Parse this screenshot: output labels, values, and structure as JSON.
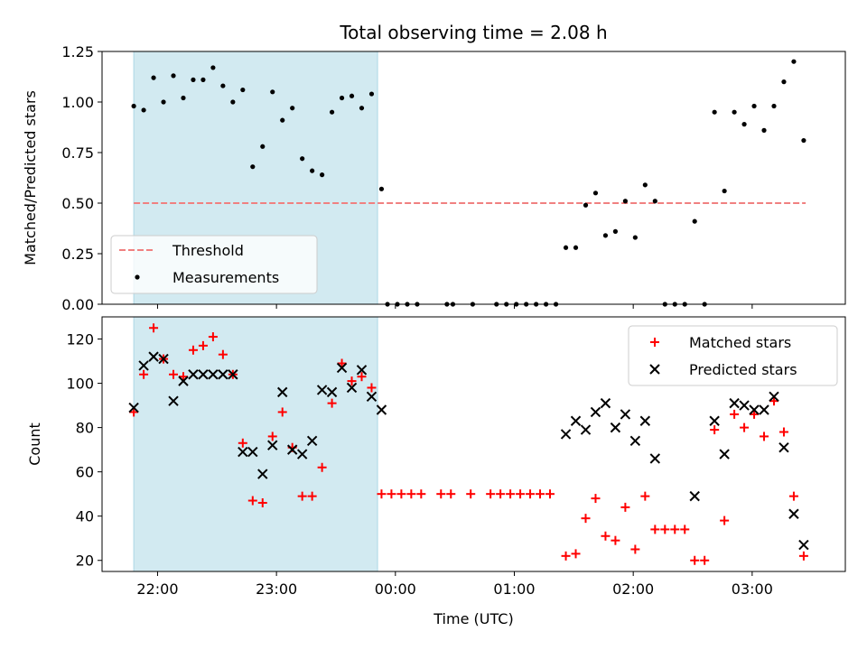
{
  "chart_data": [
    {
      "type": "scatter",
      "title": "Total observing time = 2.08 h",
      "xlabel": "",
      "ylabel": "Matched/Predicted stars",
      "ylim": [
        0,
        1.25
      ],
      "yticks": [
        "0.00",
        "0.25",
        "0.50",
        "0.75",
        "1.00",
        "1.25"
      ],
      "x_axis": "time (UTC), shared with lower panel",
      "shaded_interval": [
        "21:48",
        "23:51"
      ],
      "shade_color": "#add8e6",
      "threshold": {
        "name": "Threshold",
        "value": 0.5,
        "x_range": [
          "21:48",
          "03:27"
        ],
        "color": "#f08080",
        "style": "dashed"
      },
      "series": [
        {
          "name": "Measurements",
          "marker": "dot",
          "color": "#000000",
          "points": [
            [
              "21:48",
              0.98
            ],
            [
              "21:53",
              0.96
            ],
            [
              "21:58",
              1.12
            ],
            [
              "22:03",
              1.0
            ],
            [
              "22:08",
              1.13
            ],
            [
              "22:13",
              1.02
            ],
            [
              "22:18",
              1.11
            ],
            [
              "22:23",
              1.11
            ],
            [
              "22:28",
              1.17
            ],
            [
              "22:33",
              1.08
            ],
            [
              "22:38",
              1.0
            ],
            [
              "22:43",
              1.06
            ],
            [
              "22:48",
              0.68
            ],
            [
              "22:53",
              0.78
            ],
            [
              "22:58",
              1.05
            ],
            [
              "23:03",
              0.91
            ],
            [
              "23:08",
              0.97
            ],
            [
              "23:13",
              0.72
            ],
            [
              "23:18",
              0.66
            ],
            [
              "23:23",
              0.64
            ],
            [
              "23:28",
              0.95
            ],
            [
              "23:33",
              1.02
            ],
            [
              "23:38",
              1.03
            ],
            [
              "23:43",
              0.97
            ],
            [
              "23:48",
              1.04
            ],
            [
              "23:53",
              0.57
            ],
            [
              "23:56",
              0.0
            ],
            [
              "00:01",
              0.0
            ],
            [
              "00:06",
              0.0
            ],
            [
              "00:11",
              0.0
            ],
            [
              "00:26",
              0.0
            ],
            [
              "00:29",
              0.0
            ],
            [
              "00:39",
              0.0
            ],
            [
              "00:51",
              0.0
            ],
            [
              "00:56",
              0.0
            ],
            [
              "01:01",
              0.0
            ],
            [
              "01:06",
              0.0
            ],
            [
              "01:11",
              0.0
            ],
            [
              "01:16",
              0.0
            ],
            [
              "01:21",
              0.0
            ],
            [
              "01:26",
              0.28
            ],
            [
              "01:31",
              0.28
            ],
            [
              "01:36",
              0.49
            ],
            [
              "01:41",
              0.55
            ],
            [
              "01:46",
              0.34
            ],
            [
              "01:51",
              0.36
            ],
            [
              "01:56",
              0.51
            ],
            [
              "02:01",
              0.33
            ],
            [
              "02:06",
              0.59
            ],
            [
              "02:11",
              0.51
            ],
            [
              "02:16",
              0.0
            ],
            [
              "02:21",
              0.0
            ],
            [
              "02:26",
              0.0
            ],
            [
              "02:31",
              0.41
            ],
            [
              "02:36",
              0.0
            ],
            [
              "02:41",
              0.95
            ],
            [
              "02:46",
              0.56
            ],
            [
              "02:51",
              0.95
            ],
            [
              "02:56",
              0.89
            ],
            [
              "03:01",
              0.98
            ],
            [
              "03:06",
              0.86
            ],
            [
              "03:11",
              0.98
            ],
            [
              "03:16",
              1.1
            ],
            [
              "03:21",
              1.2
            ],
            [
              "03:26",
              0.81
            ]
          ]
        }
      ],
      "legend": {
        "placement": "lower-left",
        "entries": [
          "Threshold",
          "Measurements"
        ]
      }
    },
    {
      "type": "scatter",
      "title": "",
      "xlabel": "Time (UTC)",
      "ylabel": "Count",
      "ylim": [
        15,
        130
      ],
      "yticks": [
        "20",
        "40",
        "60",
        "80",
        "100",
        "120"
      ],
      "xticks": [
        "22:00",
        "23:00",
        "00:00",
        "01:00",
        "02:00",
        "03:00"
      ],
      "x_axis": "time (UTC), 21:32 to 03:47",
      "shaded_interval": [
        "21:48",
        "23:51"
      ],
      "shade_color": "#add8e6",
      "series": [
        {
          "name": "Matched stars",
          "marker": "plus",
          "color": "#ff0000",
          "points": [
            [
              "21:48",
              87
            ],
            [
              "21:53",
              104
            ],
            [
              "21:58",
              125
            ],
            [
              "22:03",
              111
            ],
            [
              "22:08",
              104
            ],
            [
              "22:13",
              103
            ],
            [
              "22:18",
              115
            ],
            [
              "22:23",
              117
            ],
            [
              "22:28",
              121
            ],
            [
              "22:33",
              113
            ],
            [
              "22:38",
              104
            ],
            [
              "22:43",
              73
            ],
            [
              "22:48",
              47
            ],
            [
              "22:53",
              46
            ],
            [
              "22:58",
              76
            ],
            [
              "23:03",
              87
            ],
            [
              "23:08",
              71
            ],
            [
              "23:13",
              49
            ],
            [
              "23:18",
              49
            ],
            [
              "23:23",
              62
            ],
            [
              "23:28",
              91
            ],
            [
              "23:33",
              109
            ],
            [
              "23:38",
              101
            ],
            [
              "23:43",
              103
            ],
            [
              "23:48",
              98
            ],
            [
              "23:53",
              50
            ],
            [
              "23:58",
              50
            ],
            [
              "00:03",
              50
            ],
            [
              "00:08",
              50
            ],
            [
              "00:13",
              50
            ],
            [
              "00:23",
              50
            ],
            [
              "00:28",
              50
            ],
            [
              "00:38",
              50
            ],
            [
              "00:48",
              50
            ],
            [
              "00:53",
              50
            ],
            [
              "00:58",
              50
            ],
            [
              "01:03",
              50
            ],
            [
              "01:08",
              50
            ],
            [
              "01:13",
              50
            ],
            [
              "01:18",
              50
            ],
            [
              "01:26",
              22
            ],
            [
              "01:31",
              23
            ],
            [
              "01:36",
              39
            ],
            [
              "01:41",
              48
            ],
            [
              "01:46",
              31
            ],
            [
              "01:51",
              29
            ],
            [
              "01:56",
              44
            ],
            [
              "02:01",
              25
            ],
            [
              "02:06",
              49
            ],
            [
              "02:11",
              34
            ],
            [
              "02:16",
              34
            ],
            [
              "02:21",
              34
            ],
            [
              "02:26",
              34
            ],
            [
              "02:31",
              20
            ],
            [
              "02:36",
              20
            ],
            [
              "02:41",
              79
            ],
            [
              "02:46",
              38
            ],
            [
              "02:51",
              86
            ],
            [
              "02:56",
              80
            ],
            [
              "03:01",
              86
            ],
            [
              "03:06",
              76
            ],
            [
              "03:11",
              92
            ],
            [
              "03:16",
              78
            ],
            [
              "03:21",
              49
            ],
            [
              "03:26",
              22
            ]
          ]
        },
        {
          "name": "Predicted stars",
          "marker": "x",
          "color": "#000000",
          "points": [
            [
              "21:48",
              89
            ],
            [
              "21:53",
              108
            ],
            [
              "21:58",
              112
            ],
            [
              "22:03",
              111
            ],
            [
              "22:08",
              92
            ],
            [
              "22:13",
              101
            ],
            [
              "22:18",
              104
            ],
            [
              "22:23",
              104
            ],
            [
              "22:28",
              104
            ],
            [
              "22:33",
              104
            ],
            [
              "22:38",
              104
            ],
            [
              "22:43",
              69
            ],
            [
              "22:48",
              69
            ],
            [
              "22:53",
              59
            ],
            [
              "22:58",
              72
            ],
            [
              "23:03",
              96
            ],
            [
              "23:08",
              70
            ],
            [
              "23:13",
              68
            ],
            [
              "23:18",
              74
            ],
            [
              "23:23",
              97
            ],
            [
              "23:28",
              96
            ],
            [
              "23:33",
              107
            ],
            [
              "23:38",
              98
            ],
            [
              "23:43",
              106
            ],
            [
              "23:48",
              94
            ],
            [
              "23:53",
              88
            ],
            [
              "01:26",
              77
            ],
            [
              "01:31",
              83
            ],
            [
              "01:36",
              79
            ],
            [
              "01:41",
              87
            ],
            [
              "01:46",
              91
            ],
            [
              "01:51",
              80
            ],
            [
              "01:56",
              86
            ],
            [
              "02:01",
              74
            ],
            [
              "02:06",
              83
            ],
            [
              "02:11",
              66
            ],
            [
              "02:31",
              49
            ],
            [
              "02:41",
              83
            ],
            [
              "02:46",
              68
            ],
            [
              "02:51",
              91
            ],
            [
              "02:56",
              90
            ],
            [
              "03:01",
              88
            ],
            [
              "03:06",
              88
            ],
            [
              "03:11",
              94
            ],
            [
              "03:16",
              71
            ],
            [
              "03:21",
              41
            ],
            [
              "03:26",
              27
            ]
          ]
        }
      ],
      "legend": {
        "placement": "upper-right",
        "entries": [
          "Matched stars",
          "Predicted stars"
        ]
      }
    }
  ]
}
